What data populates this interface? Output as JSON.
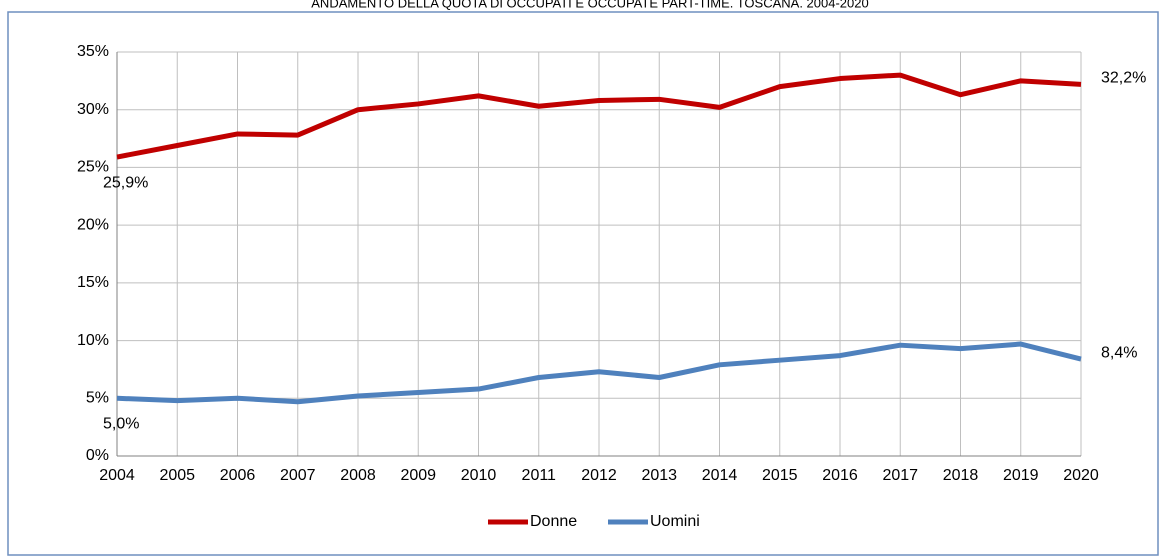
{
  "chart_data": {
    "type": "line",
    "title": "ANDAMENTO DELLA QUOTA DI OCCUPATI E OCCUPATE PART-TIME. TOSCANA. 2004-2020",
    "categories": [
      "2004",
      "2005",
      "2006",
      "2007",
      "2008",
      "2009",
      "2010",
      "2011",
      "2012",
      "2013",
      "2014",
      "2015",
      "2016",
      "2017",
      "2018",
      "2019",
      "2020"
    ],
    "series": [
      {
        "name": "Donne",
        "color": "#c00000",
        "values": [
          25.9,
          26.9,
          27.9,
          27.8,
          30.0,
          30.5,
          31.2,
          30.3,
          30.8,
          30.9,
          30.2,
          32.0,
          32.7,
          33.0,
          31.3,
          32.5,
          32.2
        ],
        "value_labels": [
          "25,9%",
          null,
          null,
          null,
          null,
          null,
          null,
          null,
          null,
          null,
          null,
          null,
          null,
          null,
          null,
          null,
          "32,2%"
        ]
      },
      {
        "name": "Uomini",
        "color": "#4f81bd",
        "values": [
          5.0,
          4.8,
          5.0,
          4.7,
          5.2,
          5.5,
          5.8,
          6.8,
          7.3,
          6.8,
          7.9,
          8.3,
          8.7,
          9.6,
          9.3,
          9.7,
          8.4
        ],
        "value_labels": [
          "5,0%",
          null,
          null,
          null,
          null,
          null,
          null,
          null,
          null,
          null,
          null,
          null,
          null,
          null,
          null,
          null,
          "8,4%"
        ]
      }
    ],
    "ylim": [
      0,
      35
    ],
    "yticks": [
      {
        "value": 0,
        "label": "0%"
      },
      {
        "value": 5,
        "label": "5%"
      },
      {
        "value": 10,
        "label": "10%"
      },
      {
        "value": 15,
        "label": "15%"
      },
      {
        "value": 20,
        "label": "20%"
      },
      {
        "value": 25,
        "label": "25%"
      },
      {
        "value": 30,
        "label": "30%"
      },
      {
        "value": 35,
        "label": "35%"
      }
    ],
    "grid": true,
    "legend": "bottom"
  }
}
